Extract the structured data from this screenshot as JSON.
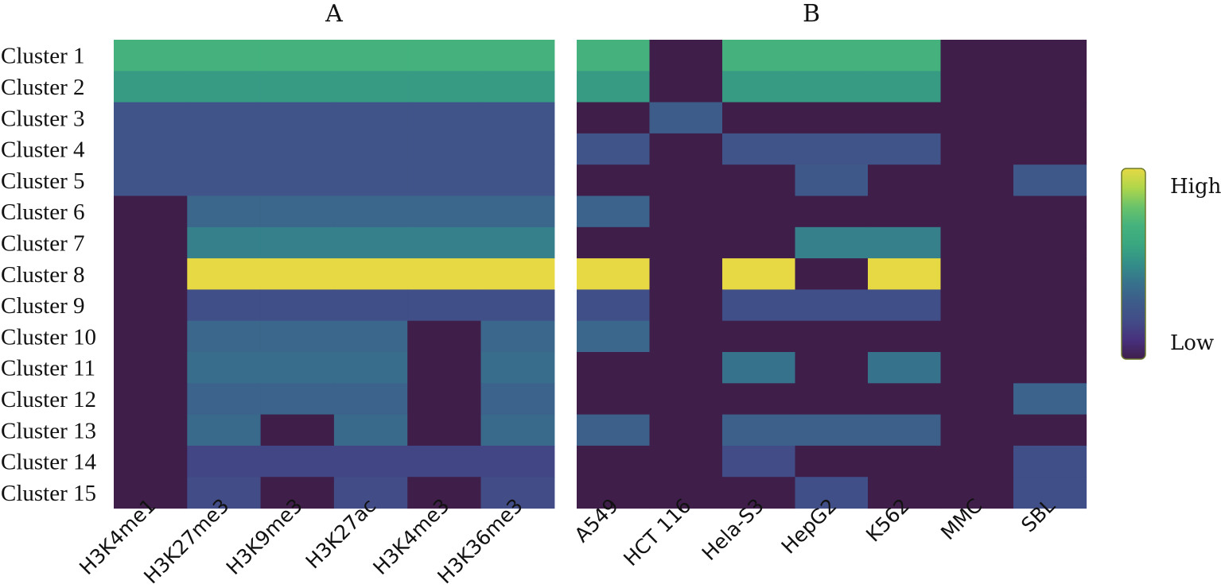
{
  "chart_data": {
    "type": "heatmap",
    "colorscale": [
      "#3f1f4a",
      "#47307d",
      "#424c87",
      "#3d5c8a",
      "#37728c",
      "#338e88",
      "#3aa780",
      "#45b27d",
      "#6ac36a",
      "#b0d64a",
      "#e6d944"
    ],
    "rows": [
      "Cluster 1",
      "Cluster 2",
      "Cluster 3",
      "Cluster 4",
      "Cluster 5",
      "Cluster 6",
      "Cluster 7",
      "Cluster 8",
      "Cluster 9",
      "Cluster 10",
      "Cluster 11",
      "Cluster 12",
      "Cluster 13",
      "Cluster 14",
      "Cluster 15"
    ],
    "panels": [
      {
        "title": "A",
        "columns": [
          "H3K4me1",
          "H3K27me3",
          "H3K9me3",
          "H3K27ac",
          "H3K4me3",
          "H3K36me3"
        ],
        "values": [
          [
            0.7,
            0.7,
            0.7,
            0.7,
            0.7,
            0.7
          ],
          [
            0.55,
            0.55,
            0.55,
            0.55,
            0.55,
            0.55
          ],
          [
            0.25,
            0.25,
            0.25,
            0.25,
            0.25,
            0.25
          ],
          [
            0.25,
            0.25,
            0.25,
            0.25,
            0.25,
            0.25
          ],
          [
            0.25,
            0.25,
            0.25,
            0.25,
            0.25,
            0.25
          ],
          [
            0.0,
            0.35,
            0.35,
            0.35,
            0.35,
            0.35
          ],
          [
            0.0,
            0.45,
            0.45,
            0.45,
            0.45,
            0.45
          ],
          [
            0.0,
            1.0,
            1.0,
            1.0,
            1.0,
            1.0
          ],
          [
            0.0,
            0.22,
            0.22,
            0.22,
            0.22,
            0.22
          ],
          [
            0.0,
            0.35,
            0.35,
            0.35,
            0.0,
            0.35
          ],
          [
            0.0,
            0.38,
            0.38,
            0.38,
            0.0,
            0.38
          ],
          [
            0.0,
            0.33,
            0.33,
            0.33,
            0.0,
            0.33
          ],
          [
            0.0,
            0.36,
            0.0,
            0.36,
            0.0,
            0.36
          ],
          [
            0.0,
            0.18,
            0.18,
            0.18,
            0.18,
            0.18
          ],
          [
            0.0,
            0.2,
            0.0,
            0.2,
            0.0,
            0.2
          ]
        ]
      },
      {
        "title": "B",
        "columns": [
          "A549",
          "HCT 116",
          "Hela-S3",
          "HepG2",
          "K562",
          "MMC",
          "SBL"
        ],
        "values": [
          [
            0.7,
            0.0,
            0.7,
            0.7,
            0.7,
            0.0,
            0.0
          ],
          [
            0.55,
            0.0,
            0.55,
            0.55,
            0.55,
            0.0,
            0.0
          ],
          [
            0.0,
            0.3,
            0.0,
            0.0,
            0.0,
            0.0,
            0.0
          ],
          [
            0.25,
            0.0,
            0.25,
            0.25,
            0.25,
            0.0,
            0.0
          ],
          [
            0.0,
            0.0,
            0.0,
            0.28,
            0.0,
            0.0,
            0.28
          ],
          [
            0.33,
            0.0,
            0.0,
            0.0,
            0.0,
            0.0,
            0.0
          ],
          [
            0.0,
            0.0,
            0.0,
            0.45,
            0.45,
            0.0,
            0.0
          ],
          [
            1.0,
            0.0,
            1.0,
            0.0,
            1.0,
            0.0,
            0.0
          ],
          [
            0.22,
            0.0,
            0.22,
            0.22,
            0.22,
            0.0,
            0.0
          ],
          [
            0.35,
            0.0,
            0.0,
            0.0,
            0.0,
            0.0,
            0.0
          ],
          [
            0.0,
            0.0,
            0.4,
            0.0,
            0.4,
            0.0,
            0.0
          ],
          [
            0.0,
            0.0,
            0.0,
            0.0,
            0.0,
            0.0,
            0.33
          ],
          [
            0.32,
            0.0,
            0.32,
            0.32,
            0.32,
            0.0,
            0.0
          ],
          [
            0.0,
            0.0,
            0.2,
            0.0,
            0.0,
            0.0,
            0.22
          ],
          [
            0.0,
            0.0,
            0.0,
            0.22,
            0.0,
            0.0,
            0.22
          ]
        ]
      }
    ],
    "legend": {
      "high_label": "High",
      "low_label": "Low",
      "placement": "right"
    }
  }
}
